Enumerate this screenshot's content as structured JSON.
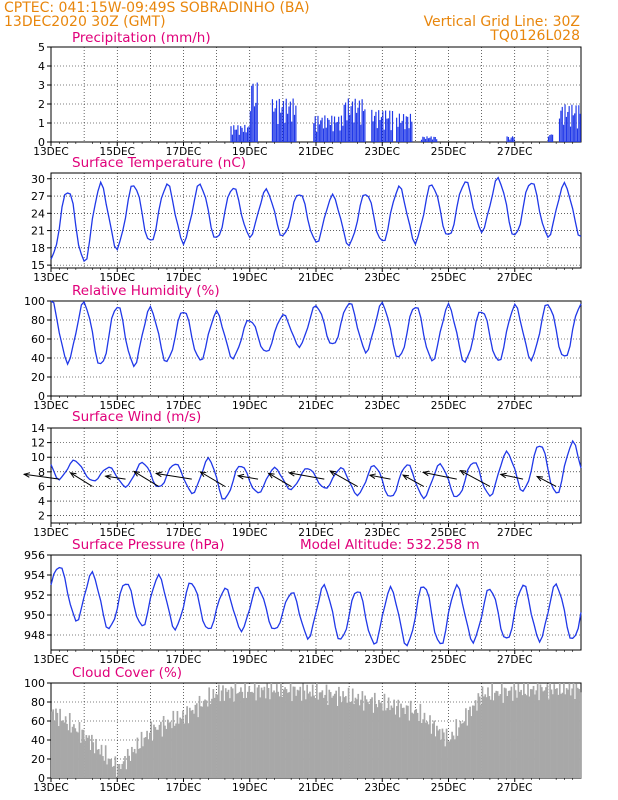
{
  "header": {
    "line1_left": "CPTEC:   041:15W-09:49S   SOBRADINHO (BA)",
    "line2_left": "13DEC2020 30Z (GMT)",
    "line1_right": "Vertical Grid Line: 30Z",
    "line2_right": "TQ0126L028"
  },
  "colors": {
    "header": "#e8860c",
    "panel_title": "#e0007a",
    "series": "#2038e8",
    "cloud": "#a8a8a8",
    "wind_arrow": "#000000"
  },
  "chart_data": [
    {
      "type": "bar",
      "title": "Precipitation (mm/h)",
      "ylim": [
        0,
        5
      ],
      "yticks": [
        "0",
        "1",
        "2",
        "3",
        "4",
        "5"
      ],
      "x_ticks": [
        "13DEC",
        "15DEC",
        "17DEC",
        "19DEC",
        "21DEC",
        "23DEC",
        "25DEC",
        "27DEC"
      ],
      "x_unit": "hours since 13DEC 30Z",
      "events": [
        {
          "x": [
            130,
            144
          ],
          "peak": 0.9
        },
        {
          "x": [
            144,
            150
          ],
          "peak": 3.2
        },
        {
          "x": [
            160,
            178
          ],
          "peak": 2.3
        },
        {
          "x": [
            190,
            212
          ],
          "peak": 1.4
        },
        {
          "x": [
            212,
            228
          ],
          "peak": 2.3
        },
        {
          "x": [
            232,
            248
          ],
          "peak": 1.7
        },
        {
          "x": [
            250,
            262
          ],
          "peak": 1.5
        },
        {
          "x": [
            268,
            280
          ],
          "peak": 0.3
        },
        {
          "x": [
            330,
            336
          ],
          "peak": 0.3
        },
        {
          "x": [
            360,
            364
          ],
          "peak": 0.4
        },
        {
          "x": [
            368,
            384
          ],
          "peak": 2.0
        }
      ]
    },
    {
      "type": "line",
      "title": "Surface Temperature (nC)",
      "ylim": [
        14.5,
        31
      ],
      "yticks": [
        "15",
        "18",
        "21",
        "24",
        "27",
        "30"
      ],
      "x_ticks": [
        "13DEC",
        "15DEC",
        "17DEC",
        "19DEC",
        "21DEC",
        "23DEC",
        "25DEC",
        "27DEC"
      ],
      "daily_max": [
        27,
        29,
        29,
        29,
        29,
        29,
        28,
        28,
        27,
        27,
        28,
        29,
        29,
        30,
        30,
        29
      ],
      "daily_min": [
        16,
        15.5,
        18,
        19,
        19,
        19.5,
        20,
        20,
        19,
        18.5,
        19,
        19,
        20,
        21,
        20,
        20
      ]
    },
    {
      "type": "line",
      "title": "Relative Humidity (%)",
      "ylim": [
        0,
        100
      ],
      "yticks": [
        "0",
        "20",
        "40",
        "60",
        "80",
        "100"
      ],
      "x_ticks": [
        "13DEC",
        "15DEC",
        "17DEC",
        "19DEC",
        "21DEC",
        "23DEC",
        "25DEC",
        "27DEC"
      ],
      "daily_max": [
        100,
        98,
        95,
        92,
        90,
        88,
        80,
        85,
        95,
        98,
        97,
        95,
        95,
        90,
        95,
        97
      ],
      "daily_min": [
        38,
        34,
        30,
        35,
        37,
        38,
        42,
        50,
        55,
        52,
        42,
        38,
        37,
        35,
        38,
        40
      ]
    },
    {
      "type": "line",
      "title": "Surface Wind (m/s)",
      "ylim": [
        1,
        14
      ],
      "yticks": [
        "2",
        "4",
        "6",
        "8",
        "10",
        "12",
        "14"
      ],
      "x_ticks": [
        "13DEC",
        "15DEC",
        "17DEC",
        "19DEC",
        "21DEC",
        "23DEC",
        "25DEC",
        "27DEC"
      ],
      "daily_max": [
        11,
        9,
        8.5,
        9.5,
        9,
        10,
        8.5,
        8.5,
        8.5,
        8.5,
        9,
        9,
        9,
        9.5,
        11,
        12
      ],
      "daily_min": [
        7,
        7,
        6,
        6,
        5.5,
        4,
        5,
        5.5,
        6,
        5,
        4.5,
        4.5,
        4.5,
        4.5,
        5.5,
        5
      ]
    },
    {
      "type": "line",
      "title": "Surface Pressure (hPa)",
      "annotation": "Model Altitude: 532.258  m",
      "ylim": [
        946.5,
        956
      ],
      "yticks": [
        "948",
        "950",
        "952",
        "954",
        "956"
      ],
      "x_ticks": [
        "13DEC",
        "15DEC",
        "17DEC",
        "19DEC",
        "21DEC",
        "23DEC",
        "25DEC",
        "27DEC"
      ],
      "daily_max": [
        955,
        954.5,
        953,
        954,
        953.5,
        952.5,
        953,
        952,
        953,
        952.5,
        952.5,
        953,
        953,
        952.5,
        953,
        953
      ],
      "daily_min": [
        951,
        949,
        948.5,
        949,
        948.5,
        948.5,
        948.5,
        948.5,
        947.5,
        947.5,
        947,
        947,
        947,
        947.5,
        947.5,
        947.5
      ]
    },
    {
      "type": "area",
      "title": "Cloud Cover (%)",
      "ylim": [
        0,
        100
      ],
      "yticks": [
        "0",
        "20",
        "40",
        "60",
        "80",
        "100"
      ],
      "x_ticks": [
        "13DEC",
        "15DEC",
        "17DEC",
        "19DEC",
        "21DEC",
        "23DEC",
        "25DEC",
        "27DEC"
      ],
      "daily_level": [
        70,
        45,
        10,
        50,
        65,
        90,
        92,
        93,
        90,
        85,
        78,
        70,
        40,
        88,
        92,
        94
      ]
    }
  ]
}
